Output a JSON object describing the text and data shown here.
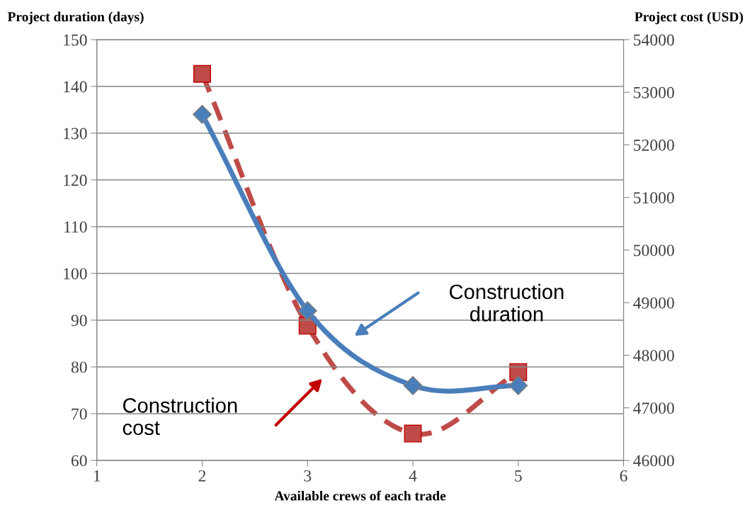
{
  "chart_data": {
    "type": "line",
    "xlabel": "Available crews of each trade",
    "ylabel": "Project duration (days)",
    "y2label": "Project cost (USD)",
    "x": [
      2,
      3,
      4,
      5
    ],
    "series": [
      {
        "color": "#4a7ebb",
        "values": [
          134,
          92,
          76,
          76
        ],
        "marker": "diamond",
        "line_style": "solid"
      },
      {
        "color": "#be4b48",
        "values": [
          53350,
          48560,
          46510,
          47680
        ],
        "marker": "square",
        "line_style": "dashed",
        "axis": "y2"
      }
    ],
    "xlim": [
      1,
      6
    ],
    "xticks": [
      1,
      2,
      3,
      4,
      5,
      6
    ],
    "ylim": [
      60,
      150
    ],
    "yticks": [
      60,
      70,
      80,
      90,
      100,
      110,
      120,
      130,
      140,
      150
    ],
    "y2lim": [
      46000,
      54000
    ],
    "y2ticks": [
      46000,
      47000,
      48000,
      49000,
      50000,
      51000,
      52000,
      53000,
      54000
    ],
    "grid": "y",
    "annotations": [
      "Construction\nduration",
      "Construction\ncost"
    ]
  }
}
